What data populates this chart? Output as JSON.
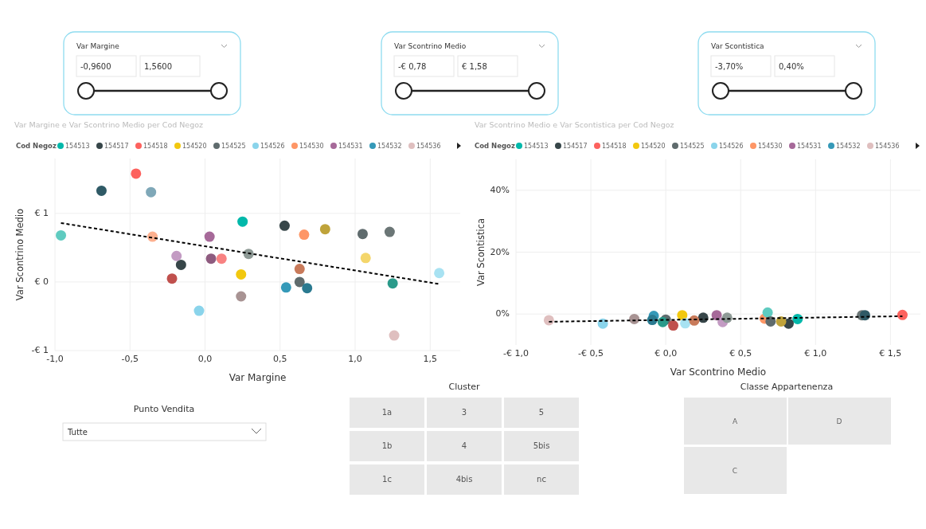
{
  "chart_data": [
    {
      "type": "scatter",
      "title": "Var Margine e Var Scontrino Medio per Cod Negoz",
      "xlabel": "Var Margine",
      "ylabel": "Var Scontrino Medio",
      "legend_title": "Cod Negoz",
      "legend": "top left",
      "grid": true,
      "marker": "circle",
      "xlim": [
        -1,
        1.7
      ],
      "xticks": [
        {
          "value": -1,
          "label": "-1,0"
        },
        {
          "value": -0.5,
          "label": "-0,5"
        },
        {
          "value": 0,
          "label": "0,0"
        },
        {
          "value": 0.5,
          "label": "0,5"
        },
        {
          "value": 1,
          "label": "1,0"
        },
        {
          "value": 1.5,
          "label": "1,5"
        }
      ],
      "ylim": [
        -1,
        1.8
      ],
      "yticks": [
        {
          "value": -1,
          "label": "-€ 1"
        },
        {
          "value": 0,
          "label": "€ 0"
        },
        {
          "value": 1,
          "label": "€ 1"
        }
      ],
      "series": [
        {
          "name": "154513",
          "color": "#01b8aa",
          "x": [
            0.25
          ],
          "values": [
            0.88
          ]
        },
        {
          "name": "154517",
          "color": "#374649",
          "x": [
            0.53,
            -0.16
          ],
          "values": [
            0.82,
            0.25
          ]
        },
        {
          "name": "154518",
          "color": "#fd625e",
          "x": [
            -0.46
          ],
          "values": [
            1.58
          ]
        },
        {
          "name": "154520",
          "color": "#f2c80f",
          "x": [
            0.24
          ],
          "values": [
            0.11
          ]
        },
        {
          "name": "154525",
          "color": "#5f6b6d",
          "x": [
            1.05,
            0.63
          ],
          "values": [
            0.7,
            0.0
          ]
        },
        {
          "name": "154526",
          "color": "#8ad4eb",
          "x": [
            -0.04
          ],
          "values": [
            -0.42
          ]
        },
        {
          "name": "154530",
          "color": "#fe9666",
          "x": [
            0.66
          ],
          "values": [
            0.69
          ]
        },
        {
          "name": "154531",
          "color": "#a66999",
          "x": [
            0.03
          ],
          "values": [
            0.66
          ]
        },
        {
          "name": "154532",
          "color": "#3599b8",
          "x": [
            0.54
          ],
          "values": [
            -0.08
          ]
        },
        {
          "name": "154536",
          "color": "#dfbfbf",
          "x": [
            1.26
          ],
          "values": [
            -0.78
          ]
        },
        {
          "type": "scatter",
          "x": [
            -0.69,
            -0.36,
            -0.96,
            -0.35,
            0.8,
            1.23,
            -0.19,
            0.04,
            0.11,
            0.29,
            1.07,
            -0.22,
            0.63,
            0.68,
            1.25,
            1.56,
            0.24
          ],
          "values": [
            1.33,
            1.31,
            0.68,
            0.66,
            0.77,
            0.73,
            0.38,
            0.34,
            0.34,
            0.41,
            0.35,
            0.05,
            0.19,
            -0.09,
            -0.02,
            0.13,
            -0.21
          ],
          "colors": [
            "#2f5a66",
            "#7fa8b8",
            "#5fcbc0",
            "#fdb08f",
            "#bfa33a",
            "#6b7676",
            "#c39bc3",
            "#8e5b7f",
            "#f88282",
            "#8e9a96",
            "#f4d66b",
            "#c0504d",
            "#c87a5a",
            "#2a7a90",
            "#2a9a8a",
            "#a8e2f2",
            "#a89393"
          ]
        },
        {
          "type": "line",
          "color": "#000000",
          "line_style": "dashed",
          "marker": "none",
          "x": [
            -0.96,
            1.56
          ],
          "values": [
            0.86,
            -0.03
          ]
        }
      ]
    },
    {
      "type": "scatter",
      "title": "Var Scontrino Medio e Var Scontistica per Cod Negoz",
      "xlabel": "Var Scontrino Medio",
      "ylabel": "Var Scontistica",
      "legend_title": "Cod Negoz",
      "legend": "top left",
      "grid": true,
      "marker": "circle",
      "xlim": [
        -1,
        1.7
      ],
      "xticks": [
        {
          "value": -1,
          "label": "-€ 1,0"
        },
        {
          "value": -0.5,
          "label": "-€ 0,5"
        },
        {
          "value": 0,
          "label": "€ 0,0"
        },
        {
          "value": 0.5,
          "label": "€ 0,5"
        },
        {
          "value": 1,
          "label": "€ 1,0"
        },
        {
          "value": 1.5,
          "label": "€ 1,5"
        }
      ],
      "ylim": [
        -10,
        50
      ],
      "yticks": [
        {
          "value": 0,
          "label": "0%"
        },
        {
          "value": 20,
          "label": "20%"
        },
        {
          "value": 40,
          "label": "40%"
        }
      ],
      "series": [
        {
          "name": "154513",
          "color": "#01b8aa",
          "x": [
            0.88
          ],
          "values": [
            -1.6
          ]
        },
        {
          "name": "154517",
          "color": "#374649",
          "x": [
            0.25,
            0.82
          ],
          "values": [
            -1.2,
            -3.1
          ]
        },
        {
          "name": "154518",
          "color": "#fd625e",
          "x": [
            1.58
          ],
          "values": [
            -0.3
          ]
        },
        {
          "name": "154520",
          "color": "#f2c80f",
          "x": [
            0.11
          ],
          "values": [
            -0.4
          ]
        },
        {
          "name": "154525",
          "color": "#5f6b6d",
          "x": [
            0.0
          ],
          "values": [
            -1.8
          ]
        },
        {
          "name": "154526",
          "color": "#8ad4eb",
          "x": [
            -0.42
          ],
          "values": [
            -3.1
          ]
        },
        {
          "name": "154530",
          "color": "#fe9666",
          "x": [
            0.66
          ],
          "values": [
            -1.5
          ]
        },
        {
          "name": "154531",
          "color": "#a66999",
          "x": [
            0.34
          ],
          "values": [
            -0.4
          ]
        },
        {
          "name": "154532",
          "color": "#3599b8",
          "x": [
            -0.08
          ],
          "values": [
            -0.6
          ]
        },
        {
          "name": "154536",
          "color": "#dfbfbf",
          "x": [
            -0.78
          ],
          "values": [
            -2.0
          ]
        },
        {
          "type": "scatter",
          "x": [
            -0.21,
            -0.09,
            -0.02,
            0.05,
            0.13,
            0.19,
            0.38,
            0.41,
            0.68,
            0.7,
            0.77,
            1.31,
            1.33
          ],
          "values": [
            -1.6,
            -1.9,
            -2.6,
            -3.7,
            -3.0,
            -2.1,
            -2.6,
            -1.2,
            0.5,
            -2.4,
            -2.4,
            -0.4,
            -0.4
          ],
          "colors": [
            "#a89393",
            "#2a7a90",
            "#2a9a8a",
            "#c0504d",
            "#a8e2f2",
            "#c87a5a",
            "#c39bc3",
            "#8e9a96",
            "#5fcbc0",
            "#5f6b6d",
            "#bfa33a",
            "#6b7676",
            "#2f5a66"
          ]
        },
        {
          "type": "line",
          "color": "#000000",
          "line_style": "dashed",
          "marker": "none",
          "x": [
            -0.78,
            1.58
          ],
          "values": [
            -2.5,
            -0.7
          ]
        }
      ]
    },
    {
      "type": "other",
      "annotations": [
        "Var Margine",
        "-0,9600",
        "1,5600",
        "Var Scontrino Medio",
        "-€ 0,78",
        "€ 1,58",
        "Var Scontistica",
        "-3,70%",
        "0,40%",
        "Punto Vendita",
        "Tutte",
        "Cluster",
        "1a",
        "3",
        "5",
        "1b",
        "4",
        "5bis",
        "1c",
        "4bis",
        "nc",
        "Classe Appartenenza",
        "A",
        "D",
        "C"
      ]
    }
  ]
}
